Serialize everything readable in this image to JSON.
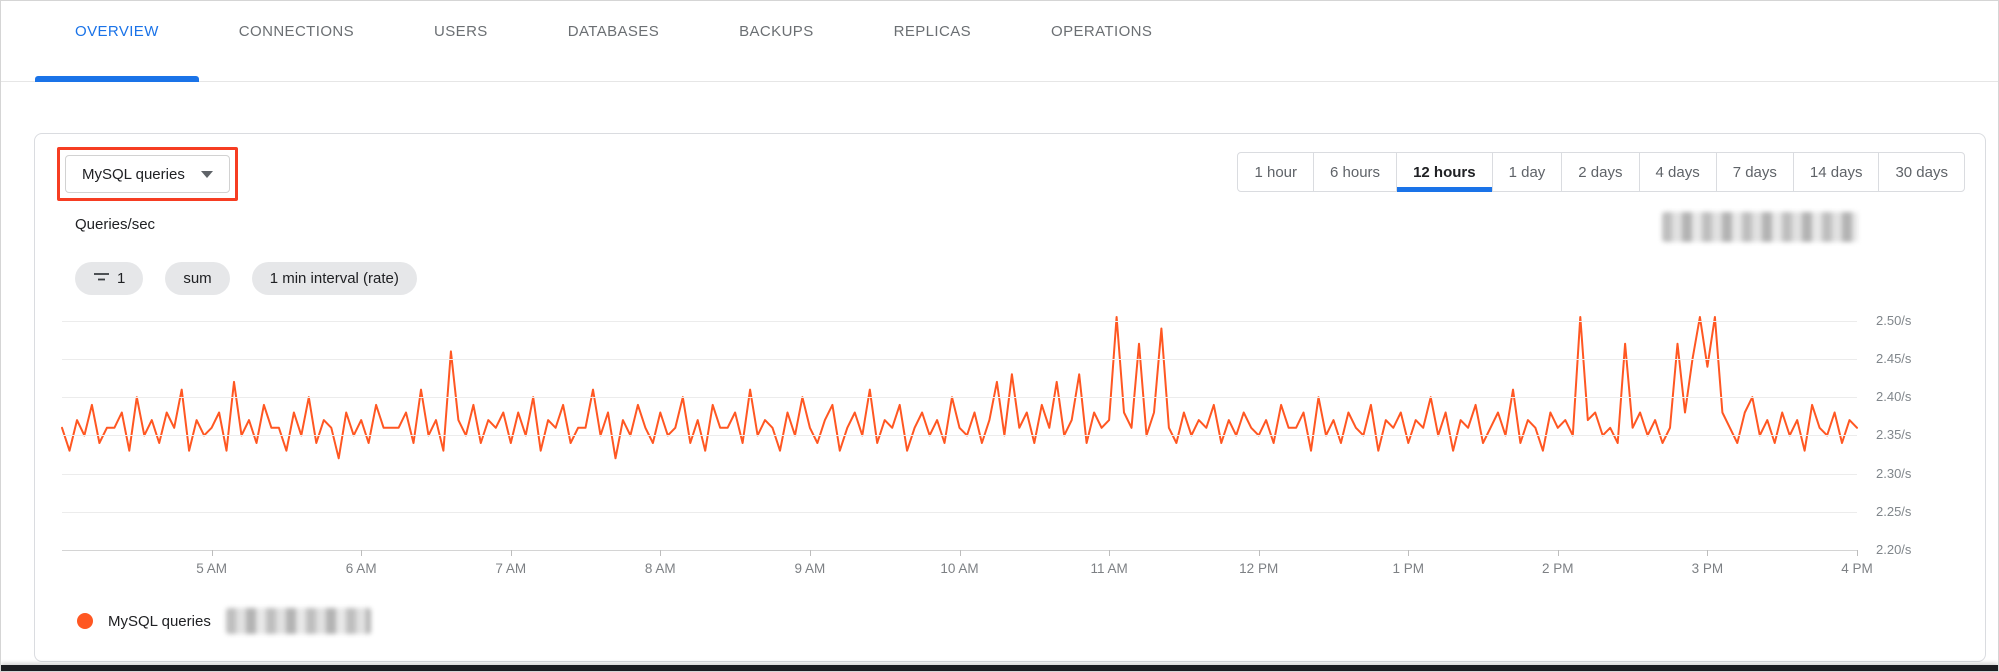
{
  "colors": {
    "accent_blue": "#1a73e8",
    "series_orange": "#ff5722",
    "annotation_red": "#f63d22",
    "tab_inactive_gray": "#6b6f73"
  },
  "tabs": {
    "items": [
      {
        "label": "OVERVIEW",
        "active": true
      },
      {
        "label": "CONNECTIONS",
        "active": false
      },
      {
        "label": "USERS",
        "active": false
      },
      {
        "label": "DATABASES",
        "active": false
      },
      {
        "label": "BACKUPS",
        "active": false
      },
      {
        "label": "REPLICAS",
        "active": false
      },
      {
        "label": "OPERATIONS",
        "active": false
      }
    ]
  },
  "panel": {
    "metric_dropdown": {
      "label": "MySQL queries"
    },
    "time_ranges": {
      "selected": "12 hours",
      "items": [
        {
          "label": "1 hour",
          "selected": false
        },
        {
          "label": "6 hours",
          "selected": false
        },
        {
          "label": "12 hours",
          "selected": true
        },
        {
          "label": "1 day",
          "selected": false
        },
        {
          "label": "2 days",
          "selected": false
        },
        {
          "label": "4 days",
          "selected": false
        },
        {
          "label": "7 days",
          "selected": false
        },
        {
          "label": "14 days",
          "selected": false
        },
        {
          "label": "30 days",
          "selected": false
        }
      ]
    },
    "chips": [
      {
        "icon": "filter-icon",
        "label": "1"
      },
      {
        "label": "sum"
      },
      {
        "label": "1 min interval (rate)"
      }
    ],
    "redacted_regions": [
      "chart-top-right-instance-name",
      "legend-instance-name"
    ]
  },
  "chart_data": {
    "type": "line",
    "title": "Queries/sec",
    "series_name": "MySQL queries",
    "color": "#ff5722",
    "legend_position": "bottom-left",
    "grid": true,
    "x_range": [
      "4:00 AM",
      "4:00 PM"
    ],
    "sample_interval_minutes": 3,
    "x_ticks": [
      "5 AM",
      "6 AM",
      "7 AM",
      "8 AM",
      "9 AM",
      "10 AM",
      "11 AM",
      "12 PM",
      "1 PM",
      "2 PM",
      "3 PM",
      "4 PM"
    ],
    "y_ticks": [
      {
        "v": 2.5,
        "label": "2.50/s"
      },
      {
        "v": 2.45,
        "label": "2.45/s"
      },
      {
        "v": 2.4,
        "label": "2.40/s"
      },
      {
        "v": 2.35,
        "label": "2.35/s"
      },
      {
        "v": 2.3,
        "label": "2.30/s"
      },
      {
        "v": 2.25,
        "label": "2.25/s"
      },
      {
        "v": 2.2,
        "label": "2.20/s"
      }
    ],
    "ylim": [
      2.2,
      2.505
    ],
    "values": [
      2.36,
      2.33,
      2.37,
      2.35,
      2.39,
      2.34,
      2.36,
      2.36,
      2.38,
      2.33,
      2.4,
      2.35,
      2.37,
      2.34,
      2.38,
      2.36,
      2.41,
      2.33,
      2.37,
      2.35,
      2.36,
      2.38,
      2.33,
      2.42,
      2.35,
      2.37,
      2.34,
      2.39,
      2.36,
      2.36,
      2.33,
      2.38,
      2.35,
      2.4,
      2.34,
      2.37,
      2.36,
      2.32,
      2.38,
      2.35,
      2.37,
      2.34,
      2.39,
      2.36,
      2.36,
      2.36,
      2.38,
      2.34,
      2.41,
      2.35,
      2.37,
      2.33,
      2.46,
      2.37,
      2.35,
      2.39,
      2.34,
      2.37,
      2.36,
      2.38,
      2.34,
      2.38,
      2.35,
      2.4,
      2.33,
      2.37,
      2.36,
      2.39,
      2.34,
      2.36,
      2.36,
      2.41,
      2.35,
      2.38,
      2.32,
      2.37,
      2.35,
      2.39,
      2.36,
      2.34,
      2.38,
      2.35,
      2.36,
      2.4,
      2.34,
      2.37,
      2.33,
      2.39,
      2.36,
      2.36,
      2.38,
      2.34,
      2.41,
      2.35,
      2.37,
      2.36,
      2.33,
      2.38,
      2.35,
      2.4,
      2.36,
      2.34,
      2.37,
      2.39,
      2.33,
      2.36,
      2.38,
      2.35,
      2.41,
      2.34,
      2.37,
      2.36,
      2.39,
      2.33,
      2.36,
      2.38,
      2.35,
      2.37,
      2.34,
      2.4,
      2.36,
      2.35,
      2.38,
      2.34,
      2.37,
      2.42,
      2.35,
      2.43,
      2.36,
      2.38,
      2.34,
      2.39,
      2.36,
      2.42,
      2.35,
      2.37,
      2.43,
      2.34,
      2.38,
      2.36,
      2.37,
      2.505,
      2.38,
      2.36,
      2.47,
      2.35,
      2.38,
      2.49,
      2.36,
      2.34,
      2.38,
      2.35,
      2.37,
      2.36,
      2.39,
      2.34,
      2.37,
      2.35,
      2.38,
      2.36,
      2.35,
      2.37,
      2.34,
      2.39,
      2.36,
      2.36,
      2.38,
      2.33,
      2.4,
      2.35,
      2.37,
      2.34,
      2.38,
      2.36,
      2.35,
      2.39,
      2.33,
      2.37,
      2.36,
      2.38,
      2.34,
      2.37,
      2.36,
      2.4,
      2.35,
      2.38,
      2.33,
      2.37,
      2.36,
      2.39,
      2.34,
      2.36,
      2.38,
      2.35,
      2.41,
      2.34,
      2.37,
      2.36,
      2.33,
      2.38,
      2.36,
      2.37,
      2.35,
      2.505,
      2.37,
      2.38,
      2.35,
      2.36,
      2.34,
      2.47,
      2.36,
      2.38,
      2.35,
      2.37,
      2.34,
      2.36,
      2.47,
      2.38,
      2.45,
      2.505,
      2.44,
      2.505,
      2.38,
      2.36,
      2.34,
      2.38,
      2.4,
      2.35,
      2.37,
      2.34,
      2.38,
      2.35,
      2.37,
      2.33,
      2.39,
      2.36,
      2.35,
      2.38,
      2.34,
      2.37,
      2.36
    ]
  }
}
